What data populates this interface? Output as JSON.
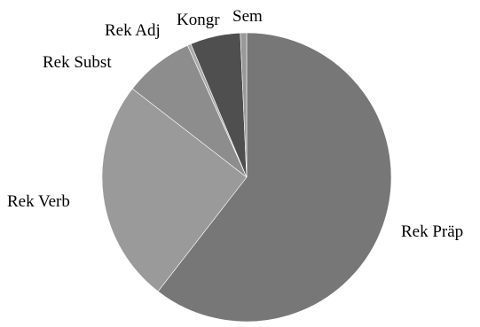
{
  "chart_data": {
    "type": "pie",
    "title": "",
    "categories": [
      "Rek Präp",
      "Rek Verb",
      "Rek Subst",
      "Rek Adj",
      "Kongr",
      "Sem"
    ],
    "values": [
      60.5,
      25.0,
      7.8,
      0.4,
      5.6,
      0.7
    ],
    "colors": [
      "#777777",
      "#9a9a9a",
      "#8d8d8d",
      "#aaaaaa",
      "#4f4f4f",
      "#999999"
    ],
    "start_angle_deg": 0,
    "direction": "clockwise",
    "legend": "none",
    "data_labels": "category names outside slices"
  }
}
